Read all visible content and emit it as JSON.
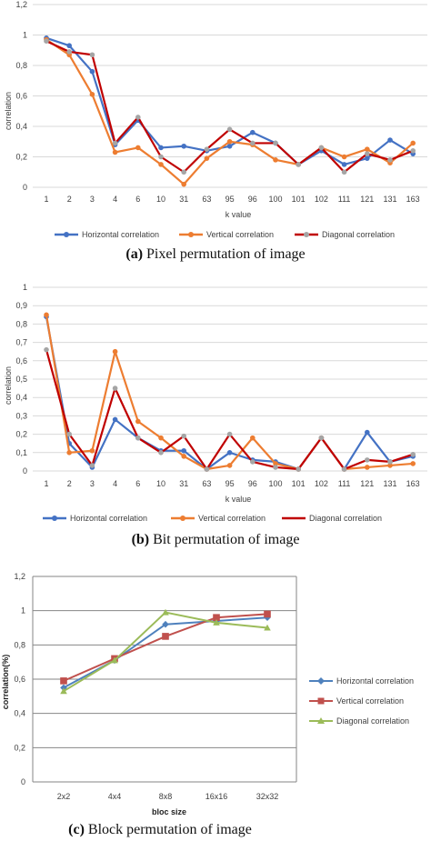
{
  "colors": {
    "horizontal": "#4472c4",
    "vertical": "#ed7d31",
    "diagonal": "#c00000",
    "diagonal_marker": "#a5a5a5",
    "green": "#9bbb59",
    "blue2": "#4f81bd",
    "red2": "#c0504d"
  },
  "chart_data": [
    {
      "type": "line",
      "caption_letter": "(a)",
      "caption_text": "Pixel permutation of image",
      "categories": [
        "1",
        "2",
        "3",
        "4",
        "6",
        "10",
        "31",
        "63",
        "95",
        "96",
        "100",
        "101",
        "102",
        "111",
        "121",
        "131",
        "163"
      ],
      "yticks": [
        "0",
        "0,2",
        "0,4",
        "0,6",
        "0,8",
        "1",
        "1,2"
      ],
      "ylim": [
        0,
        1.2
      ],
      "ylabel": "correlation",
      "xlabel": "k value",
      "legend_position": "bottom",
      "series": [
        {
          "name": "Horizontal correlation",
          "values": [
            0.98,
            0.93,
            0.76,
            0.28,
            0.44,
            0.26,
            0.27,
            0.24,
            0.27,
            0.36,
            0.29,
            0.15,
            0.24,
            0.15,
            0.19,
            0.31,
            0.22
          ]
        },
        {
          "name": "Vertical correlation",
          "values": [
            0.97,
            0.87,
            0.61,
            0.23,
            0.26,
            0.15,
            0.02,
            0.19,
            0.3,
            0.28,
            0.18,
            0.15,
            0.26,
            0.2,
            0.25,
            0.16,
            0.29
          ]
        },
        {
          "name": "Diagonal correlation",
          "values": [
            0.96,
            0.89,
            0.87,
            0.29,
            0.46,
            0.2,
            0.1,
            0.25,
            0.38,
            0.29,
            0.29,
            0.15,
            0.26,
            0.1,
            0.22,
            0.18,
            0.24
          ]
        }
      ]
    },
    {
      "type": "line",
      "caption_letter": "(b)",
      "caption_text": "Bit permutation of image",
      "categories": [
        "1",
        "2",
        "3",
        "4",
        "6",
        "10",
        "31",
        "63",
        "95",
        "96",
        "100",
        "101",
        "102",
        "111",
        "121",
        "131",
        "163"
      ],
      "yticks": [
        "0",
        "0,1",
        "0,2",
        "0,3",
        "0,4",
        "0,5",
        "0,6",
        "0,7",
        "0,8",
        "0,9",
        "1"
      ],
      "ylim": [
        0,
        1
      ],
      "ylabel": "correlation",
      "xlabel": "k value",
      "legend_position": "bottom",
      "series": [
        {
          "name": "Horizontal correlation",
          "values": [
            0.84,
            0.15,
            0.02,
            0.28,
            0.18,
            0.11,
            0.11,
            0.01,
            0.1,
            0.06,
            0.05,
            0.01,
            0.18,
            0.01,
            0.21,
            0.05,
            0.08
          ]
        },
        {
          "name": "Vertical correlation",
          "values": [
            0.85,
            0.1,
            0.11,
            0.65,
            0.27,
            0.18,
            0.08,
            0.01,
            0.03,
            0.18,
            0.04,
            0.01,
            0.18,
            0.01,
            0.02,
            0.03,
            0.04
          ]
        },
        {
          "name": "Diagonal correlation",
          "values": [
            0.66,
            0.2,
            0.03,
            0.45,
            0.18,
            0.1,
            0.19,
            0.01,
            0.2,
            0.05,
            0.02,
            0.01,
            0.18,
            0.01,
            0.06,
            0.05,
            0.09
          ]
        }
      ]
    },
    {
      "type": "line",
      "caption_letter": "(c)",
      "caption_text": "Block permutation of image",
      "categories": [
        "2x2",
        "4x4",
        "8x8",
        "16x16",
        "32x32"
      ],
      "yticks": [
        "0",
        "0,2",
        "0,4",
        "0,6",
        "0,8",
        "1",
        "1,2"
      ],
      "ylim": [
        0,
        1.2
      ],
      "ylabel": "correlation(%)",
      "xlabel": "bloc size",
      "legend_position": "right",
      "series": [
        {
          "name": "Horizontal correlation",
          "values": [
            0.55,
            0.71,
            0.92,
            0.94,
            0.96
          ]
        },
        {
          "name": "Vertical correlation",
          "values": [
            0.59,
            0.72,
            0.85,
            0.96,
            0.98
          ]
        },
        {
          "name": "Diagonal correlation",
          "values": [
            0.53,
            0.71,
            0.99,
            0.93,
            0.9
          ]
        }
      ]
    }
  ]
}
